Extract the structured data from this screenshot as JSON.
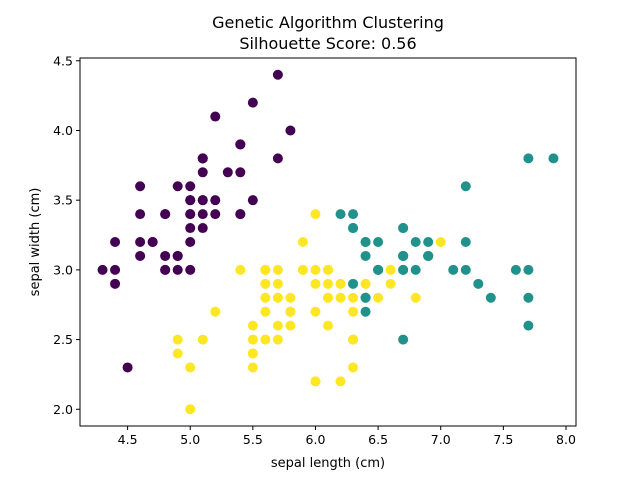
{
  "chart_data": {
    "type": "scatter",
    "title": "Genetic Algorithm Clustering",
    "subtitle": "Silhouette Score: 0.56",
    "xlabel": "sepal length (cm)",
    "ylabel": "sepal width (cm)",
    "xlim": [
      4.12,
      8.08
    ],
    "ylim": [
      1.88,
      4.52
    ],
    "x_ticks": [
      4.5,
      5.0,
      5.5,
      6.0,
      6.5,
      7.0,
      7.5,
      8.0
    ],
    "x_tick_labels": [
      "4.5",
      "5.0",
      "5.5",
      "6.0",
      "6.5",
      "7.0",
      "7.5",
      "8.0"
    ],
    "y_ticks": [
      2.0,
      2.5,
      3.0,
      3.5,
      4.0,
      4.5
    ],
    "y_tick_labels": [
      "2.0",
      "2.5",
      "3.0",
      "3.5",
      "4.0",
      "4.5"
    ],
    "grid": false,
    "cluster_colors": [
      "#440154",
      "#21918c",
      "#fde725"
    ],
    "points": [
      [
        5.1,
        3.5,
        0
      ],
      [
        4.9,
        3.0,
        0
      ],
      [
        4.7,
        3.2,
        0
      ],
      [
        4.6,
        3.1,
        0
      ],
      [
        5.0,
        3.6,
        0
      ],
      [
        5.4,
        3.9,
        0
      ],
      [
        4.6,
        3.4,
        0
      ],
      [
        5.0,
        3.4,
        0
      ],
      [
        4.4,
        2.9,
        0
      ],
      [
        4.9,
        3.1,
        0
      ],
      [
        5.4,
        3.7,
        0
      ],
      [
        4.8,
        3.4,
        0
      ],
      [
        4.8,
        3.0,
        0
      ],
      [
        4.3,
        3.0,
        0
      ],
      [
        5.8,
        4.0,
        0
      ],
      [
        5.7,
        4.4,
        0
      ],
      [
        5.4,
        3.9,
        0
      ],
      [
        5.1,
        3.5,
        0
      ],
      [
        5.7,
        3.8,
        0
      ],
      [
        5.1,
        3.8,
        0
      ],
      [
        5.4,
        3.4,
        0
      ],
      [
        5.1,
        3.7,
        0
      ],
      [
        4.6,
        3.6,
        0
      ],
      [
        5.1,
        3.3,
        0
      ],
      [
        4.8,
        3.4,
        0
      ],
      [
        5.0,
        3.0,
        0
      ],
      [
        5.0,
        3.4,
        0
      ],
      [
        5.2,
        3.5,
        0
      ],
      [
        5.2,
        3.4,
        0
      ],
      [
        4.7,
        3.2,
        0
      ],
      [
        4.8,
        3.1,
        0
      ],
      [
        5.4,
        3.4,
        0
      ],
      [
        5.2,
        4.1,
        0
      ],
      [
        5.5,
        4.2,
        0
      ],
      [
        4.9,
        3.1,
        0
      ],
      [
        5.0,
        3.2,
        0
      ],
      [
        5.5,
        3.5,
        0
      ],
      [
        4.9,
        3.6,
        0
      ],
      [
        4.4,
        3.0,
        0
      ],
      [
        5.1,
        3.4,
        0
      ],
      [
        5.0,
        3.5,
        0
      ],
      [
        4.5,
        2.3,
        0
      ],
      [
        4.4,
        3.2,
        0
      ],
      [
        5.0,
        3.5,
        0
      ],
      [
        5.1,
        3.8,
        0
      ],
      [
        4.8,
        3.0,
        0
      ],
      [
        5.1,
        3.8,
        0
      ],
      [
        4.6,
        3.2,
        0
      ],
      [
        5.3,
        3.7,
        0
      ],
      [
        5.0,
        3.3,
        0
      ],
      [
        7.0,
        3.2,
        2
      ],
      [
        6.4,
        3.2,
        1
      ],
      [
        6.9,
        3.1,
        1
      ],
      [
        5.5,
        2.3,
        2
      ],
      [
        6.5,
        2.8,
        2
      ],
      [
        5.7,
        2.8,
        2
      ],
      [
        6.3,
        3.3,
        1
      ],
      [
        4.9,
        2.4,
        2
      ],
      [
        6.6,
        2.9,
        2
      ],
      [
        5.2,
        2.7,
        2
      ],
      [
        5.0,
        2.0,
        2
      ],
      [
        5.9,
        3.0,
        2
      ],
      [
        6.0,
        2.2,
        2
      ],
      [
        6.1,
        2.9,
        2
      ],
      [
        5.6,
        2.9,
        2
      ],
      [
        6.7,
        3.1,
        1
      ],
      [
        5.6,
        3.0,
        2
      ],
      [
        5.8,
        2.7,
        2
      ],
      [
        6.2,
        2.2,
        2
      ],
      [
        5.6,
        2.5,
        2
      ],
      [
        5.9,
        3.2,
        2
      ],
      [
        6.1,
        2.8,
        2
      ],
      [
        6.3,
        2.5,
        2
      ],
      [
        6.1,
        2.8,
        2
      ],
      [
        6.4,
        2.9,
        2
      ],
      [
        6.6,
        3.0,
        2
      ],
      [
        6.8,
        2.8,
        2
      ],
      [
        6.7,
        3.0,
        1
      ],
      [
        6.0,
        2.9,
        2
      ],
      [
        5.7,
        2.6,
        2
      ],
      [
        5.5,
        2.4,
        2
      ],
      [
        5.5,
        2.4,
        2
      ],
      [
        5.8,
        2.7,
        2
      ],
      [
        6.0,
        2.7,
        2
      ],
      [
        5.4,
        3.0,
        2
      ],
      [
        6.0,
        3.4,
        2
      ],
      [
        6.7,
        3.1,
        1
      ],
      [
        6.3,
        2.3,
        2
      ],
      [
        5.6,
        3.0,
        2
      ],
      [
        5.5,
        2.5,
        2
      ],
      [
        5.5,
        2.6,
        2
      ],
      [
        6.1,
        3.0,
        2
      ],
      [
        5.8,
        2.6,
        2
      ],
      [
        5.0,
        2.3,
        2
      ],
      [
        5.6,
        2.7,
        2
      ],
      [
        5.7,
        3.0,
        2
      ],
      [
        5.7,
        2.9,
        2
      ],
      [
        6.2,
        2.9,
        2
      ],
      [
        5.1,
        2.5,
        2
      ],
      [
        5.7,
        2.8,
        2
      ],
      [
        6.3,
        3.3,
        1
      ],
      [
        5.8,
        2.7,
        2
      ],
      [
        7.1,
        3.0,
        1
      ],
      [
        6.3,
        2.9,
        1
      ],
      [
        6.5,
        3.0,
        1
      ],
      [
        7.6,
        3.0,
        1
      ],
      [
        4.9,
        2.5,
        2
      ],
      [
        7.3,
        2.9,
        1
      ],
      [
        6.7,
        2.5,
        1
      ],
      [
        7.2,
        3.6,
        1
      ],
      [
        6.5,
        3.2,
        1
      ],
      [
        6.4,
        2.7,
        1
      ],
      [
        6.8,
        3.0,
        1
      ],
      [
        5.7,
        2.5,
        2
      ],
      [
        5.8,
        2.8,
        2
      ],
      [
        6.4,
        3.2,
        1
      ],
      [
        6.5,
        3.0,
        1
      ],
      [
        7.7,
        3.8,
        1
      ],
      [
        7.7,
        2.6,
        1
      ],
      [
        6.0,
        2.2,
        2
      ],
      [
        6.9,
        3.2,
        1
      ],
      [
        5.6,
        2.8,
        2
      ],
      [
        7.7,
        2.8,
        1
      ],
      [
        6.3,
        2.7,
        2
      ],
      [
        6.7,
        3.3,
        1
      ],
      [
        7.2,
        3.2,
        1
      ],
      [
        6.2,
        2.8,
        2
      ],
      [
        6.1,
        3.0,
        2
      ],
      [
        6.4,
        2.8,
        1
      ],
      [
        7.2,
        3.0,
        1
      ],
      [
        7.4,
        2.8,
        1
      ],
      [
        7.9,
        3.8,
        1
      ],
      [
        6.4,
        2.8,
        1
      ],
      [
        6.3,
        2.8,
        2
      ],
      [
        6.1,
        2.6,
        2
      ],
      [
        7.7,
        3.0,
        1
      ],
      [
        6.3,
        3.4,
        1
      ],
      [
        6.4,
        3.1,
        1
      ],
      [
        6.0,
        3.0,
        2
      ],
      [
        6.9,
        3.1,
        1
      ],
      [
        6.7,
        3.1,
        1
      ],
      [
        6.9,
        3.1,
        1
      ],
      [
        5.8,
        2.7,
        2
      ],
      [
        6.8,
        3.2,
        1
      ],
      [
        6.7,
        3.3,
        1
      ],
      [
        6.7,
        3.0,
        1
      ],
      [
        6.3,
        2.5,
        2
      ],
      [
        6.5,
        3.0,
        1
      ],
      [
        6.2,
        3.4,
        1
      ],
      [
        5.9,
        3.0,
        2
      ]
    ]
  }
}
